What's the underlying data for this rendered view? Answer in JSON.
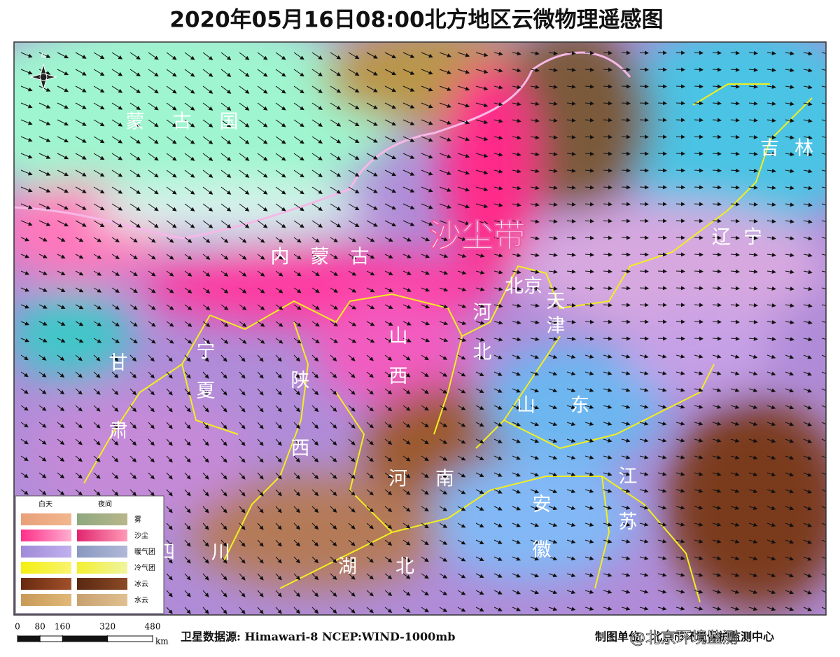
{
  "title": "2020年05月16日08:00北方地区云微物理遥感图",
  "map_labels": [
    "蒙古国",
    "内蒙古",
    "北京",
    "天津",
    "河北",
    "山西",
    "山东",
    "河南",
    "陕西",
    "宁夏",
    "甘肃",
    "吉林",
    "辽宁",
    "江苏",
    "安徽",
    "湖北",
    "四川"
  ],
  "dust_label": "沙尘带",
  "compass": "N",
  "legend": {
    "headers": [
      "白天",
      "夜间"
    ],
    "items": [
      "雾",
      "沙尘",
      "暖气团",
      "冷气团",
      "冰云",
      "水云"
    ]
  },
  "scale_bar": {
    "ticks": [
      0,
      80,
      160,
      320,
      480
    ],
    "unit": "km"
  },
  "footer": {
    "source": "卫星数据源: Himawari-8  NCEP:WIND-1000mb",
    "producer": "制图单位：北京市环境保护监测中心"
  },
  "watermark": "@北京环境监测"
}
